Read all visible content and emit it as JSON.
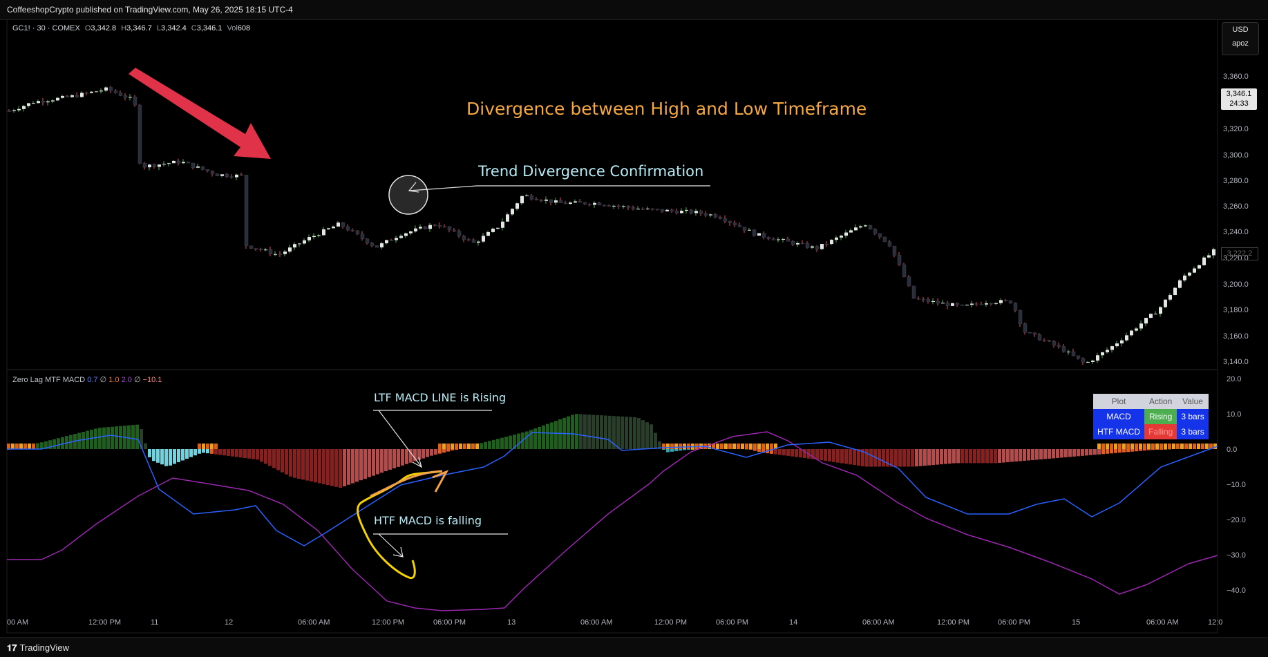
{
  "header": {
    "published": "CoffeeshopCrypto published on TradingView.com, May 26, 2025 18:15 UTC-4"
  },
  "legend": {
    "symbol": "GC1! · 30 · COMEX",
    "o_label": "O",
    "o": "3,342.8",
    "h_label": "H",
    "h": "3,346.7",
    "l_label": "L",
    "l": "3,342.4",
    "c_label": "C",
    "c": "3,346.1",
    "vol_label": "Vol",
    "vol": "608"
  },
  "currency": {
    "code": "USD",
    "sub": "apoz"
  },
  "price_tag": {
    "price": "3,346.1",
    "countdown": "24:33",
    "second": "3,222.2"
  },
  "indicator": {
    "name": "Zero Lag MTF MACD",
    "p1": "0.7",
    "s1": "∅",
    "p2": "1.0",
    "p3": "2.0",
    "s2": "∅",
    "p4": "−10.1"
  },
  "annotations": {
    "title": "Divergence between High and Low Timeframe",
    "trend": "Trend Divergence Confirmation",
    "ltf": "LTF MACD LINE is Rising",
    "htf": "HTF MACD is falling"
  },
  "table": {
    "headers": [
      "Plot",
      "Action",
      "Value"
    ],
    "rows": [
      {
        "plot": "MACD",
        "action": "Rising",
        "value": "3 bars"
      },
      {
        "plot": "HTF MACD",
        "action": "Falling",
        "value": "3 bars"
      }
    ]
  },
  "price_axis": [
    "3,360.0",
    "3,340.0",
    "3,320.0",
    "3,300.0",
    "3,280.0",
    "3,260.0",
    "3,240.0",
    "3,220.0",
    "3,200.0",
    "3,180.0",
    "3,160.0",
    "3,140.0"
  ],
  "macd_axis": [
    "20.0",
    "10.0",
    "0.0",
    "−10.0",
    "−20.0",
    "−30.0",
    "−40.0"
  ],
  "time_axis": [
    "00 AM",
    "12:00 PM",
    "11",
    "12",
    "06:00 AM",
    "12:00 PM",
    "06:00 PM",
    "13",
    "06:00 AM",
    "12:00 PM",
    "06:00 PM",
    "14",
    "06:00 AM",
    "12:00 PM",
    "06:00 PM",
    "15",
    "06:00 AM",
    "12:0"
  ],
  "footer": {
    "brand": "TradingView"
  },
  "colors": {
    "title": "#f5a742",
    "annotation": "#b7ecf7",
    "up": "#e6e6e6",
    "down": "#2a2e39",
    "macd_line": "#2962ff",
    "htf_line": "#9c27b0"
  }
}
